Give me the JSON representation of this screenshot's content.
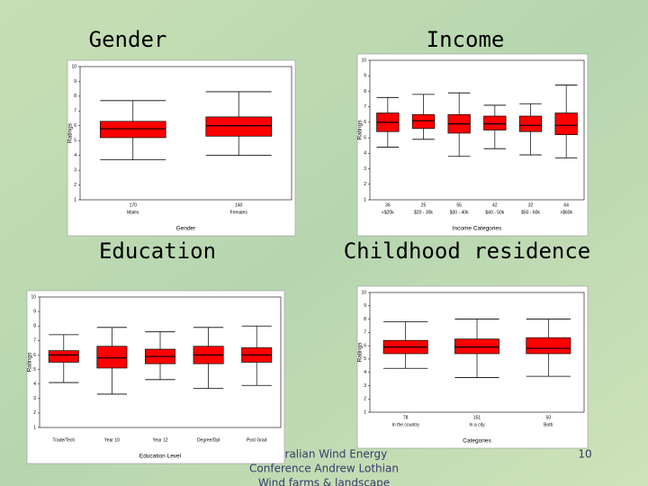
{
  "headings": [
    "Gender",
    "Income",
    "Education",
    "Childhood residence"
  ],
  "footer": [
    "Australian Wind Energy",
    "Conference Andrew Lothian",
    "Wind farms & landscape"
  ],
  "page_number": "10",
  "chart_data": [
    {
      "type": "box",
      "xlabel": "Gender",
      "ylabel": "Ratings",
      "color": "#ff0000",
      "categories": [
        "Males",
        "Females"
      ],
      "n_labels": [
        "170",
        "140"
      ],
      "ylim": [
        1,
        10
      ],
      "yticks": [
        1,
        2,
        3,
        4,
        5,
        6,
        7,
        8,
        9,
        10
      ],
      "boxes": [
        {
          "min": 3.7,
          "q1": 5.2,
          "median": 5.8,
          "q3": 6.3,
          "max": 7.7
        },
        {
          "min": 4.0,
          "q1": 5.3,
          "median": 6.0,
          "q3": 6.6,
          "max": 8.3
        }
      ]
    },
    {
      "type": "box",
      "xlabel": "Income Categories",
      "ylabel": "Ratings",
      "color": "#ff0000",
      "categories": [
        "<$20k",
        "$20 - 30k",
        "$30 - 40k",
        "$40 - 50k",
        "$50 - 60k",
        ">$60k"
      ],
      "n_labels": [
        "36",
        "25",
        "55",
        "42",
        "32",
        "64"
      ],
      "ylim": [
        1,
        10
      ],
      "yticks": [
        1,
        2,
        3,
        4,
        5,
        6,
        7,
        8,
        9,
        10
      ],
      "boxes": [
        {
          "min": 4.4,
          "q1": 5.4,
          "median": 6.0,
          "q3": 6.6,
          "max": 7.6
        },
        {
          "min": 4.9,
          "q1": 5.6,
          "median": 6.1,
          "q3": 6.5,
          "max": 7.8
        },
        {
          "min": 3.8,
          "q1": 5.3,
          "median": 5.9,
          "q3": 6.5,
          "max": 7.9
        },
        {
          "min": 4.3,
          "q1": 5.5,
          "median": 5.9,
          "q3": 6.4,
          "max": 7.1
        },
        {
          "min": 3.9,
          "q1": 5.4,
          "median": 5.8,
          "q3": 6.4,
          "max": 7.2
        },
        {
          "min": 3.7,
          "q1": 5.2,
          "median": 5.8,
          "q3": 6.6,
          "max": 8.4
        }
      ]
    },
    {
      "type": "box",
      "xlabel": "Education Level",
      "ylabel": "Ratings",
      "color": "#ff0000",
      "categories": [
        "Trade/Tech",
        "Year 10",
        "Year 12",
        "Degree/Dpl",
        "Post Grad"
      ],
      "ylim": [
        1,
        10
      ],
      "yticks": [
        1,
        2,
        3,
        4,
        5,
        6,
        7,
        8,
        9,
        10
      ],
      "boxes": [
        {
          "min": 4.1,
          "q1": 5.5,
          "median": 6.0,
          "q3": 6.3,
          "max": 7.4
        },
        {
          "min": 3.3,
          "q1": 5.1,
          "median": 5.8,
          "q3": 6.6,
          "max": 7.9
        },
        {
          "min": 4.3,
          "q1": 5.4,
          "median": 5.9,
          "q3": 6.4,
          "max": 7.6
        },
        {
          "min": 3.7,
          "q1": 5.4,
          "median": 6.0,
          "q3": 6.6,
          "max": 7.9
        },
        {
          "min": 3.9,
          "q1": 5.5,
          "median": 6.0,
          "q3": 6.5,
          "max": 8.0
        }
      ]
    },
    {
      "type": "box",
      "xlabel": "Categories",
      "ylabel": "Ratings",
      "color": "#ff0000",
      "categories": [
        "In the country",
        "In a city",
        "Both"
      ],
      "n_labels": [
        "78",
        "151",
        "50"
      ],
      "ylim": [
        1,
        10
      ],
      "yticks": [
        1,
        2,
        3,
        4,
        5,
        6,
        7,
        8,
        9,
        10
      ],
      "boxes": [
        {
          "min": 4.3,
          "q1": 5.4,
          "median": 5.9,
          "q3": 6.4,
          "max": 7.8
        },
        {
          "min": 3.6,
          "q1": 5.4,
          "median": 5.9,
          "q3": 6.5,
          "max": 8.0
        },
        {
          "min": 3.7,
          "q1": 5.4,
          "median": 5.8,
          "q3": 6.6,
          "max": 8.0
        }
      ]
    }
  ]
}
